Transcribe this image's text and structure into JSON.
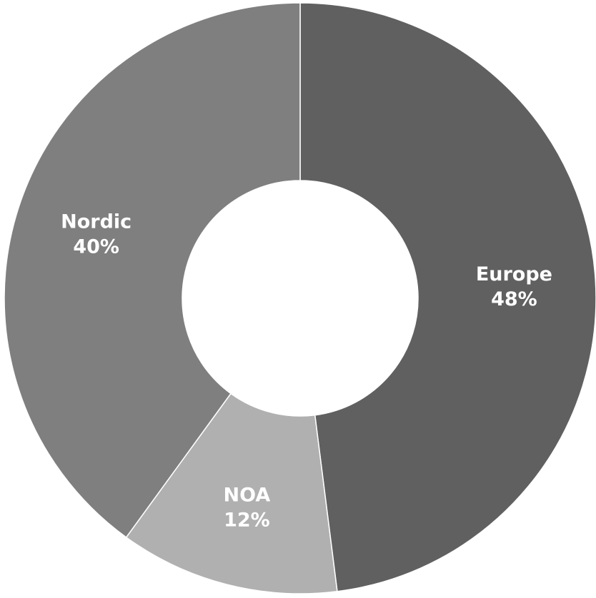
{
  "chart_data": {
    "type": "pie",
    "style": "donut",
    "labels": [
      "Europe",
      "NOA",
      "Nordic"
    ],
    "values": [
      48,
      12,
      40
    ],
    "value_labels": [
      "48%",
      "12%",
      "40%"
    ],
    "colors": [
      "#606060",
      "#b0b0b0",
      "#7f7f7f"
    ],
    "legend": "none",
    "title": ""
  }
}
